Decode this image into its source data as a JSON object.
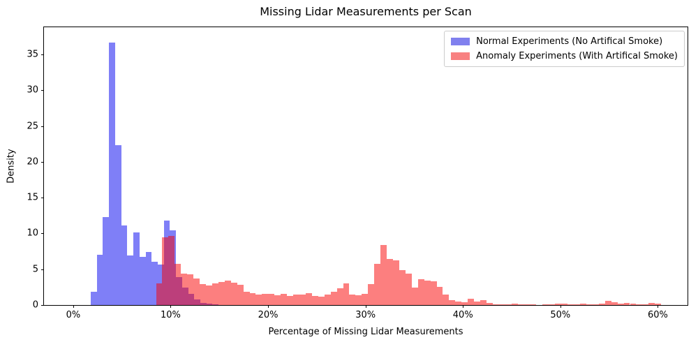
{
  "chart_data": {
    "type": "bar",
    "subtype": "overlapping-density-histogram",
    "title": "Missing Lidar Measurements per Scan",
    "xlabel": "Percentage of Missing Lidar Measurements",
    "ylabel": "Density",
    "xlim_pct": [
      -3.0,
      63.05
    ],
    "ylim": [
      0,
      38.8
    ],
    "grid": false,
    "legend_position": "upper right",
    "x_ticks": [
      {
        "value": 0,
        "label": "0%"
      },
      {
        "value": 10,
        "label": "10%"
      },
      {
        "value": 20,
        "label": "20%"
      },
      {
        "value": 30,
        "label": "30%"
      },
      {
        "value": 40,
        "label": "40%"
      },
      {
        "value": 50,
        "label": "50%"
      },
      {
        "value": 60,
        "label": "60%"
      }
    ],
    "y_ticks": [
      {
        "value": 0,
        "label": "0"
      },
      {
        "value": 5,
        "label": "5"
      },
      {
        "value": 10,
        "label": "10"
      },
      {
        "value": 15,
        "label": "15"
      },
      {
        "value": 20,
        "label": "20"
      },
      {
        "value": 25,
        "label": "25"
      },
      {
        "value": 30,
        "label": "30"
      },
      {
        "value": 35,
        "label": "35"
      }
    ],
    "series": [
      {
        "name": "Normal Experiments (No Artifical Smoke)",
        "color": "#0000f0",
        "alpha": 0.5,
        "legend_swatch_color": "#8080ee",
        "bin_start_pct": 1.8,
        "bin_width_pct": 0.625,
        "densities": [
          1.9,
          7.0,
          12.3,
          36.7,
          22.3,
          11.1,
          6.9,
          10.1,
          6.7,
          7.4,
          6.0,
          5.7,
          11.8,
          10.4,
          3.9,
          2.4,
          1.6,
          0.8,
          0.3,
          0.2,
          0.1
        ]
      },
      {
        "name": "Anomaly Experiments (With Artifical Smoke)",
        "color": "#fa0000",
        "alpha": 0.5,
        "legend_swatch_color": "#f88181",
        "bin_start_pct": 8.5,
        "bin_width_pct": 0.64,
        "densities": [
          3.0,
          9.5,
          9.7,
          5.8,
          4.4,
          4.3,
          3.7,
          2.9,
          2.7,
          3.0,
          3.2,
          3.4,
          3.1,
          2.8,
          1.9,
          1.7,
          1.5,
          1.6,
          1.6,
          1.4,
          1.6,
          1.3,
          1.5,
          1.5,
          1.7,
          1.3,
          1.2,
          1.5,
          1.9,
          2.3,
          3.0,
          1.5,
          1.4,
          1.6,
          2.9,
          5.8,
          8.4,
          6.4,
          6.2,
          4.9,
          4.4,
          2.4,
          3.6,
          3.4,
          3.3,
          2.5,
          1.5,
          0.7,
          0.5,
          0.4,
          0.9,
          0.5,
          0.7,
          0.3,
          0.1,
          0.05,
          0.1,
          0.15,
          0.05,
          0.1,
          0.05,
          0.0,
          0.05,
          0.1,
          0.15,
          0.2,
          0.05,
          0.1,
          0.15,
          0.1,
          0.1,
          0.15,
          0.6,
          0.35,
          0.2,
          0.25,
          0.2,
          0.1,
          0.1,
          0.3,
          0.15
        ]
      }
    ]
  },
  "colors": {
    "background": "#ffffff",
    "axis_frame": "#000000",
    "legend_border": "#cccccc",
    "overlap_blend": "#bf3f7f"
  }
}
